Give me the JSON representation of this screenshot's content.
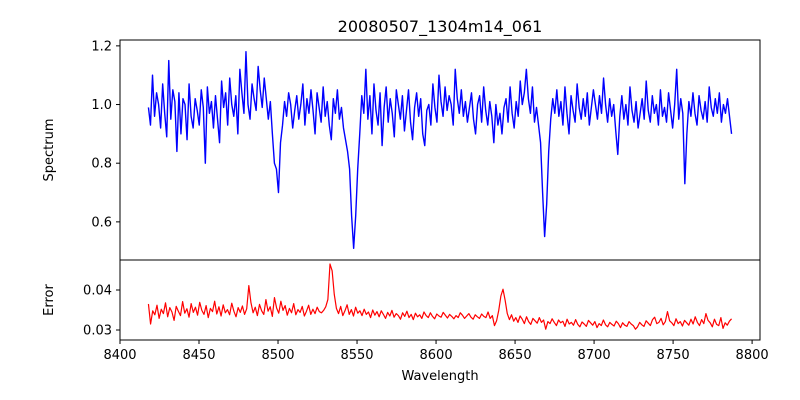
{
  "figure": {
    "title": "20080507_1304m14_061"
  },
  "chart_data": {
    "type": "line",
    "title": "20080507_1304m14_061",
    "xlabel": "Wavelength",
    "x_range": [
      8400,
      8805
    ],
    "x_ticks": [
      8400,
      8450,
      8500,
      8550,
      8600,
      8650,
      8700,
      8750,
      8800
    ],
    "grid": false,
    "panels": [
      {
        "name": "spectrum",
        "ylabel": "Spectrum",
        "ylim": [
          0.47,
          1.22
        ],
        "y_ticks": [
          0.6,
          0.8,
          1.0,
          1.2
        ],
        "y_tick_labels": [
          "0.6",
          "0.8",
          "1.0",
          "1.2"
        ],
        "color": "#0000ff",
        "series": [
          {
            "x_start": 8418,
            "x_end": 8787,
            "values": [
              0.99,
              0.93,
              1.1,
              0.96,
              1.04,
              1.0,
              0.92,
              1.07,
              0.97,
              0.89,
              1.15,
              0.95,
              1.05,
              1.01,
              0.84,
              1.04,
              0.9,
              1.02,
              1.0,
              0.88,
              1.07,
              0.96,
              0.92,
              1.02,
              0.98,
              0.93,
              1.05,
              0.99,
              0.8,
              1.06,
              0.97,
              1.01,
              0.92,
              1.03,
              0.95,
              0.87,
              1.08,
              0.99,
              1.04,
              0.93,
              1.09,
              1.0,
              0.96,
              1.03,
              0.9,
              1.12,
              1.04,
              0.97,
              1.18,
              1.0,
              0.95,
              1.07,
              1.02,
              0.98,
              1.13,
              1.05,
              0.99,
              1.09,
              1.02,
              0.95,
              1.01,
              0.9,
              0.8,
              0.78,
              0.7,
              0.87,
              0.93,
              1.01,
              0.96,
              1.04,
              1.0,
              0.92,
              0.98,
              1.03,
              0.95,
              1.0,
              1.07,
              0.93,
              1.02,
              0.97,
              1.05,
              0.98,
              0.9,
              1.04,
              0.99,
              0.94,
              1.06,
              0.96,
              1.01,
              0.93,
              0.88,
              1.02,
              0.97,
              1.05,
              0.95,
              0.99,
              0.92,
              0.88,
              0.84,
              0.78,
              0.62,
              0.51,
              0.62,
              0.78,
              0.9,
              1.03,
              0.97,
              1.12,
              0.95,
              1.03,
              0.9,
              1.07,
              0.98,
              0.93,
              1.04,
              0.86,
              0.99,
              1.06,
              0.94,
              1.02,
              0.97,
              0.89,
              1.05,
              1.0,
              0.95,
              1.03,
              0.91,
              0.98,
              1.05,
              0.94,
              0.88,
              0.99,
              1.04,
              0.96,
              1.02,
              0.9,
              0.86,
              0.98,
              1.0,
              0.93,
              1.07,
              0.99,
              0.94,
              1.1,
              1.01,
              0.96,
              1.06,
              0.98,
              1.03,
              1.0,
              0.93,
              1.12,
              1.02,
              0.97,
              1.05,
              0.96,
              1.01,
              0.94,
              0.99,
              1.04,
              0.95,
              0.9,
              1.0,
              1.03,
              0.94,
              1.06,
              0.98,
              0.93,
              1.01,
              0.96,
              0.87,
              1.0,
              0.93,
              0.97,
              0.9,
              0.99,
              1.02,
              0.94,
              1.06,
              0.97,
              0.92,
              1.01,
              0.96,
              1.08,
              1.0,
              1.04,
              1.12,
              1.02,
              0.97,
              1.06,
              0.94,
              0.99,
              0.93,
              0.87,
              0.7,
              0.55,
              0.66,
              0.84,
              0.95,
              1.02,
              0.97,
              1.05,
              0.96,
              1.01,
              0.93,
              1.06,
              0.97,
              0.9,
              1.03,
              0.98,
              0.94,
              1.07,
              0.99,
              0.95,
              1.02,
              0.96,
              1.04,
              0.93,
              0.99,
              1.05,
              1.0,
              0.95,
              1.03,
              0.97,
              1.09,
              1.0,
              0.94,
              1.02,
              0.96,
              1.0,
              0.91,
              0.83,
              0.96,
              1.03,
              0.95,
              1.0,
              0.93,
              1.06,
              0.98,
              0.94,
              1.01,
              0.92,
              0.97,
              1.02,
              0.95,
              1.08,
              0.98,
              0.94,
              1.03,
              0.97,
              1.0,
              0.93,
              1.05,
              0.96,
              0.99,
              0.94,
              1.04,
              0.98,
              0.92,
              1.0,
              1.12,
              0.95,
              1.02,
              0.97,
              0.73,
              0.9,
              1.01,
              0.96,
              1.04,
              0.97,
              0.93,
              1.03,
              0.98,
              0.95,
              1.01,
              0.94,
              1.06,
              0.99,
              0.96,
              1.02,
              0.97,
              1.04,
              0.94,
              1.0,
              0.97,
              1.02,
              0.96,
              0.9
            ]
          }
        ]
      },
      {
        "name": "error",
        "ylabel": "Error",
        "ylim": [
          0.0275,
          0.0475
        ],
        "y_ticks": [
          0.03,
          0.04
        ],
        "y_tick_labels": [
          "0.03",
          "0.04"
        ],
        "color": "#ff0000",
        "series": [
          {
            "x_start": 8418,
            "x_end": 8787,
            "values": [
              0.0365,
              0.0315,
              0.0348,
              0.0338,
              0.0362,
              0.0329,
              0.0352,
              0.0341,
              0.0368,
              0.0333,
              0.0356,
              0.0345,
              0.0324,
              0.0359,
              0.0347,
              0.0336,
              0.0371,
              0.0342,
              0.0353,
              0.0332,
              0.0366,
              0.0344,
              0.0357,
              0.0337,
              0.0369,
              0.0349,
              0.0339,
              0.0361,
              0.0331,
              0.0354,
              0.0346,
              0.0372,
              0.034,
              0.0358,
              0.0335,
              0.0363,
              0.0343,
              0.0351,
              0.0338,
              0.0367,
              0.0347,
              0.0333,
              0.0356,
              0.0344,
              0.036,
              0.0339,
              0.0353,
              0.0411,
              0.0368,
              0.0343,
              0.0357,
              0.0336,
              0.0364,
              0.0348,
              0.0339,
              0.0376,
              0.0347,
              0.0358,
              0.0334,
              0.0381,
              0.0355,
              0.0342,
              0.0372,
              0.0349,
              0.0361,
              0.0337,
              0.0354,
              0.0343,
              0.0366,
              0.0338,
              0.0351,
              0.0344,
              0.0359,
              0.0335,
              0.0347,
              0.0362,
              0.0339,
              0.0352,
              0.0341,
              0.0357,
              0.0346,
              0.0343,
              0.0349,
              0.0358,
              0.0376,
              0.0465,
              0.0448,
              0.0389,
              0.0354,
              0.0341,
              0.0359,
              0.0336,
              0.0348,
              0.0363,
              0.0339,
              0.0351,
              0.0335,
              0.0357,
              0.0342,
              0.0348,
              0.0336,
              0.0352,
              0.0339,
              0.0345,
              0.0331,
              0.035,
              0.0337,
              0.0346,
              0.0333,
              0.0348,
              0.0339,
              0.0329,
              0.0344,
              0.0335,
              0.0349,
              0.0332,
              0.0341,
              0.0336,
              0.0327,
              0.0343,
              0.0334,
              0.0347,
              0.0331,
              0.0339,
              0.0326,
              0.0342,
              0.0333,
              0.0338,
              0.0329,
              0.0345,
              0.0336,
              0.0331,
              0.0343,
              0.0334,
              0.0328,
              0.034,
              0.0335,
              0.0332,
              0.0344,
              0.0337,
              0.033,
              0.0339,
              0.0334,
              0.0328,
              0.0336,
              0.0331,
              0.0343,
              0.0337,
              0.0329,
              0.0335,
              0.0341,
              0.0332,
              0.0327,
              0.0338,
              0.0333,
              0.0329,
              0.034,
              0.0334,
              0.0331,
              0.0345,
              0.0329,
              0.0336,
              0.0311,
              0.0323,
              0.0349,
              0.0385,
              0.0402,
              0.0374,
              0.0341,
              0.0326,
              0.0338,
              0.0322,
              0.0331,
              0.0319,
              0.0335,
              0.0327,
              0.0316,
              0.0333,
              0.0321,
              0.0314,
              0.0329,
              0.0323,
              0.0317,
              0.0331,
              0.0319,
              0.0325,
              0.0302,
              0.0321,
              0.0316,
              0.0328,
              0.0319,
              0.0311,
              0.0325,
              0.0318,
              0.0322,
              0.0309,
              0.0327,
              0.0315,
              0.0319,
              0.0312,
              0.0326,
              0.0314,
              0.0308,
              0.032,
              0.0315,
              0.0309,
              0.0324,
              0.0318,
              0.0312,
              0.0321,
              0.0306,
              0.0316,
              0.0311,
              0.0325,
              0.0313,
              0.0308,
              0.0319,
              0.0314,
              0.031,
              0.0322,
              0.0316,
              0.0306,
              0.0318,
              0.0312,
              0.0309,
              0.0321,
              0.0315,
              0.0311,
              0.0302,
              0.0308,
              0.0319,
              0.0313,
              0.0309,
              0.0323,
              0.0317,
              0.0311,
              0.0326,
              0.0332,
              0.0316,
              0.0319,
              0.0329,
              0.0313,
              0.0321,
              0.0346,
              0.0323,
              0.0318,
              0.0311,
              0.0328,
              0.0316,
              0.0321,
              0.031,
              0.0324,
              0.0318,
              0.0312,
              0.0327,
              0.0315,
              0.0333,
              0.0319,
              0.0311,
              0.0326,
              0.0316,
              0.0341,
              0.0324,
              0.0318,
              0.0308,
              0.0327,
              0.0314,
              0.0311,
              0.0331,
              0.0304,
              0.0318,
              0.0312,
              0.0322,
              0.0328
            ]
          }
        ]
      }
    ]
  }
}
